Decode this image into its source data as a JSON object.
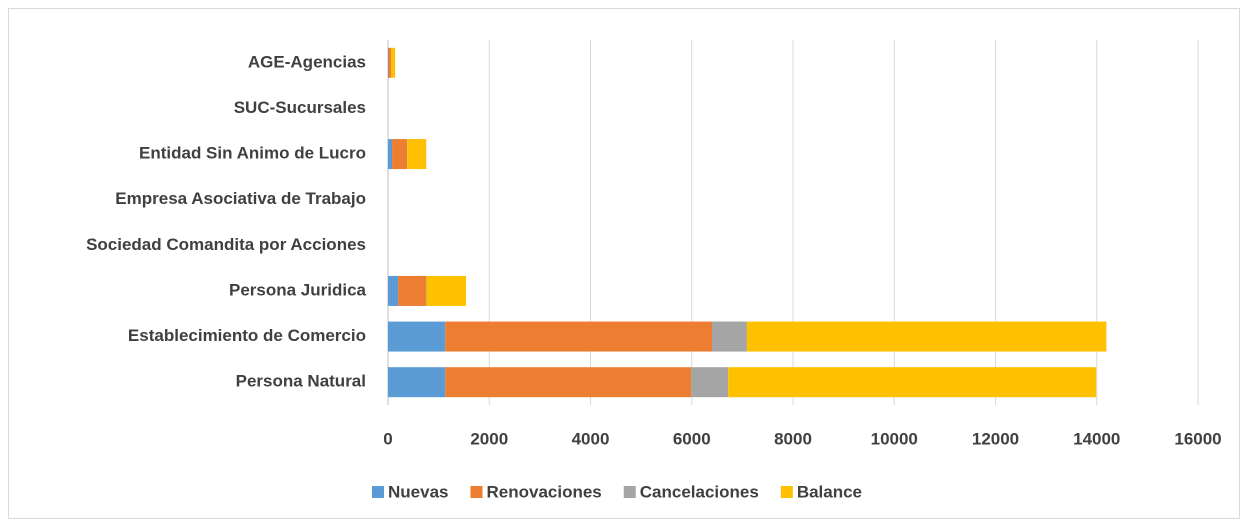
{
  "chart_data": {
    "type": "bar",
    "orientation": "horizontal",
    "stacked": true,
    "categories": [
      "AGE-Agencias",
      "SUC-Sucursales",
      "Entidad Sin Animo de Lucro",
      "Empresa Asociativa de Trabajo",
      "Sociedad Comandita por Acciones",
      "Persona Juridica",
      "Establecimiento de Comercio",
      "Persona Natural"
    ],
    "series": [
      {
        "name": "Nuevas",
        "color": "#5b9bd5",
        "values": [
          10,
          0,
          80,
          0,
          0,
          200,
          1130,
          1130
        ]
      },
      {
        "name": "Renovaciones",
        "color": "#ed7d31",
        "values": [
          50,
          0,
          295,
          0,
          0,
          550,
          5270,
          4860
        ]
      },
      {
        "name": "Cancelaciones",
        "color": "#a5a5a5",
        "values": [
          0,
          0,
          5,
          0,
          0,
          10,
          690,
          730
        ]
      },
      {
        "name": "Balance",
        "color": "#ffc000",
        "values": [
          80,
          0,
          375,
          0,
          0,
          780,
          7100,
          7270
        ]
      }
    ],
    "xlim": [
      0,
      16000
    ],
    "xticks": [
      0,
      2000,
      4000,
      6000,
      8000,
      10000,
      12000,
      14000,
      16000
    ],
    "grid": true,
    "legend": "bottom"
  }
}
